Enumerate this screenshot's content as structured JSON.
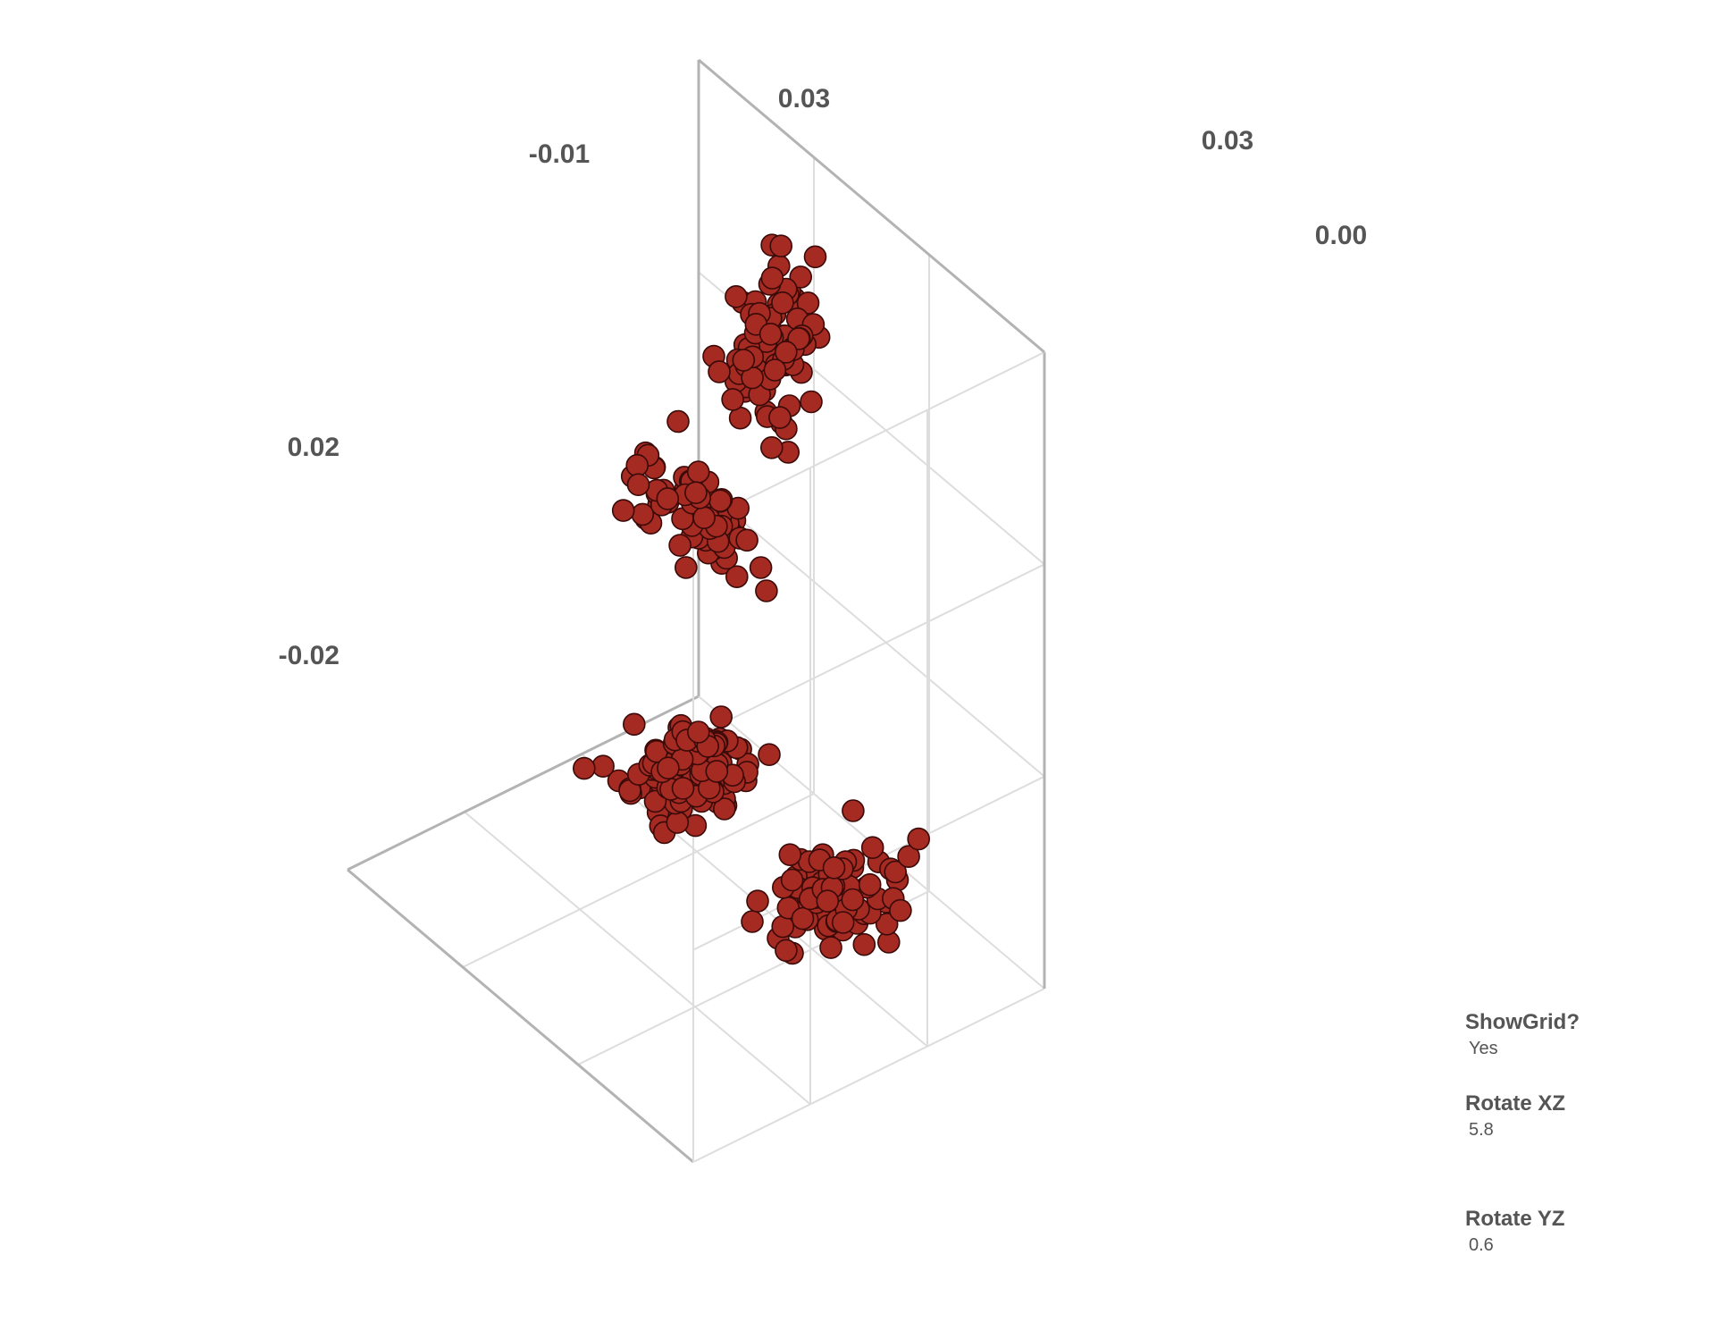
{
  "chart_data": {
    "type": "scatter3d",
    "title": "",
    "point_color": "#a52a22",
    "point_edge_color": "#3a0a08",
    "grid_color": "#dddddd",
    "axis_color": "#b3b3b3",
    "tick_labels": {
      "x": [
        "-0.01",
        "0.03"
      ],
      "z": [
        "0.03",
        "0.00"
      ],
      "y": [
        "0.02",
        "-0.02"
      ]
    },
    "clusters": [
      {
        "center": [
          -0.018,
          -0.024,
          0.045
        ],
        "spread": [
          0.006,
          0.004,
          0.004
        ],
        "n": 130
      },
      {
        "center": [
          0.022,
          0.03,
          0.02
        ],
        "spread": [
          0.004,
          0.009,
          0.003
        ],
        "n": 90
      },
      {
        "center": [
          0.03,
          -0.028,
          -0.01
        ],
        "spread": [
          0.003,
          0.004,
          0.007
        ],
        "n": 70
      },
      {
        "center": [
          0.01,
          -0.06,
          0.05
        ],
        "spread": [
          0.006,
          0.004,
          0.004
        ],
        "n": 95
      }
    ]
  },
  "controls": {
    "show_grid": {
      "label": "ShowGrid?",
      "value": "Yes"
    },
    "rotate_xz": {
      "label": "Rotate XZ",
      "value": "5.8"
    },
    "rotate_yz": {
      "label": "Rotate YZ",
      "value": "0.6"
    }
  }
}
